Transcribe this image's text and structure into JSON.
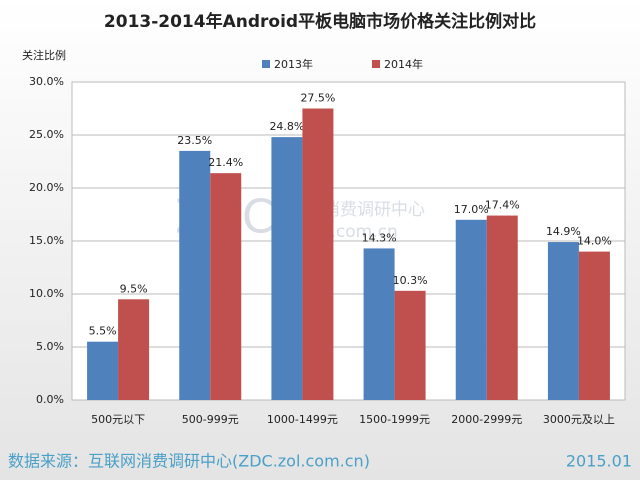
{
  "chart_data": {
    "type": "bar",
    "title": "2013-2014年Android平板电脑市场价格关注比例对比",
    "y_label": "关注比例",
    "categories": [
      "500元以下",
      "500-999元",
      "1000-1499元",
      "1500-1999元",
      "2000-2999元",
      "3000元及以上"
    ],
    "series": [
      {
        "name": "2013年",
        "color": "#4f81bd",
        "values": [
          5.5,
          23.5,
          24.8,
          14.3,
          17.0,
          14.9
        ],
        "value_labels": [
          "5.5%",
          "23.5%",
          "24.8%",
          "14.3%",
          "17.0%",
          "14.9%"
        ]
      },
      {
        "name": "2014年",
        "color": "#c0504d",
        "values": [
          9.5,
          21.4,
          27.5,
          10.3,
          17.4,
          14.0
        ],
        "value_labels": [
          "9.5%",
          "21.4%",
          "27.5%",
          "10.3%",
          "17.4%",
          "14.0%"
        ]
      }
    ],
    "ylim": [
      0,
      30
    ],
    "yticks": [
      {
        "value": 0,
        "label": "0.0%"
      },
      {
        "value": 5,
        "label": "5.0%"
      },
      {
        "value": 10,
        "label": "10.0%"
      },
      {
        "value": 15,
        "label": "15.0%"
      },
      {
        "value": 20,
        "label": "20.0%"
      },
      {
        "value": 25,
        "label": "25.0%"
      },
      {
        "value": 30,
        "label": "30.0%"
      }
    ],
    "grid": true,
    "legend": "top",
    "watermark": [
      "ZDC",
      "互联网消费调研中心",
      "zdc.zol.com.cn"
    ],
    "source": "数据来源：互联网消费调研中心(ZDC.zol.com.cn)",
    "date": "2015.01"
  }
}
